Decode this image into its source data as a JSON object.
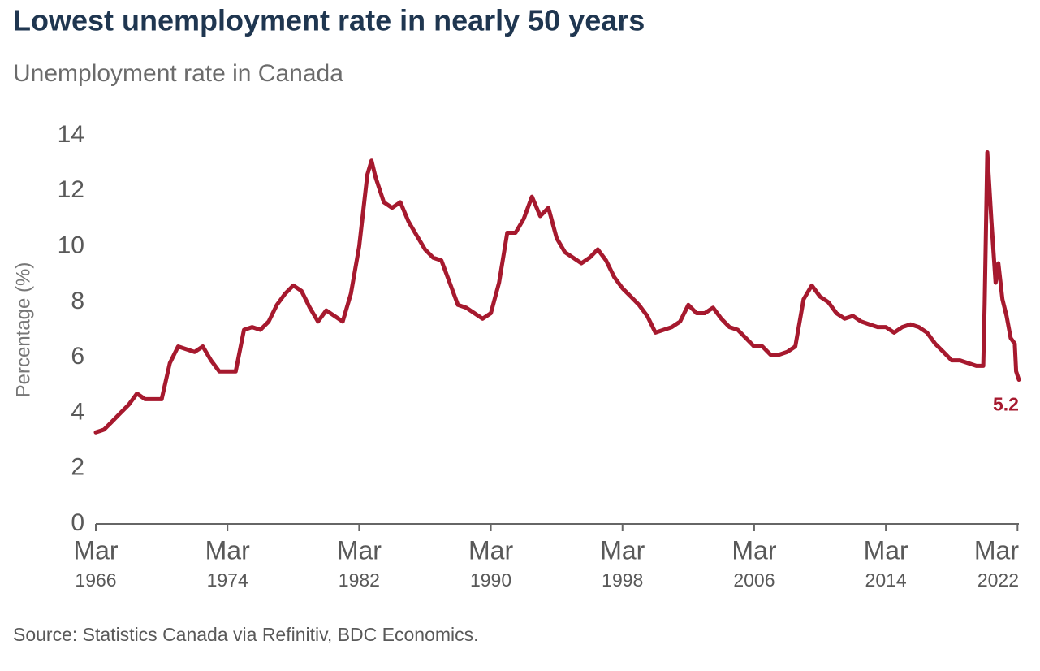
{
  "chart_data": {
    "type": "line",
    "title": "Lowest unemployment rate in nearly 50 years",
    "subtitle": "Unemployment rate in Canada",
    "y_label": "Percentage (%)",
    "source": "Source: Statistics Canada via Refinitiv, BDC Economics.",
    "color": "#a6192e",
    "ylim": [
      0,
      14
    ],
    "yticks": [
      0,
      2,
      4,
      6,
      8,
      10,
      12,
      14
    ],
    "xlim": [
      "1966-03",
      "2022-04"
    ],
    "xticks": [
      {
        "value": "1966-03",
        "label": [
          "Mar",
          "1966"
        ]
      },
      {
        "value": "1974-03",
        "label": [
          "Mar",
          "1974"
        ]
      },
      {
        "value": "1982-03",
        "label": [
          "Mar",
          "1982"
        ]
      },
      {
        "value": "1990-03",
        "label": [
          "Mar",
          "1990"
        ]
      },
      {
        "value": "1998-03",
        "label": [
          "Mar",
          "1998"
        ]
      },
      {
        "value": "2006-03",
        "label": [
          "Mar",
          "2006"
        ]
      },
      {
        "value": "2014-03",
        "label": [
          "Mar",
          "2014"
        ]
      },
      {
        "value": "2022-03",
        "label": [
          "Mar",
          "2022"
        ]
      }
    ],
    "x": [
      "1966-03",
      "1966-09",
      "1967-03",
      "1967-09",
      "1968-03",
      "1968-09",
      "1969-03",
      "1969-09",
      "1970-03",
      "1970-09",
      "1971-03",
      "1971-09",
      "1972-03",
      "1972-09",
      "1973-03",
      "1973-09",
      "1974-03",
      "1974-09",
      "1975-03",
      "1975-09",
      "1976-03",
      "1976-09",
      "1977-03",
      "1977-09",
      "1978-03",
      "1978-09",
      "1979-03",
      "1979-09",
      "1980-03",
      "1980-09",
      "1981-03",
      "1981-09",
      "1982-03",
      "1982-09",
      "1982-12",
      "1983-03",
      "1983-09",
      "1984-03",
      "1984-09",
      "1985-03",
      "1985-09",
      "1986-03",
      "1986-09",
      "1987-03",
      "1987-09",
      "1988-03",
      "1988-09",
      "1989-03",
      "1989-09",
      "1990-03",
      "1990-09",
      "1991-03",
      "1991-09",
      "1992-03",
      "1992-09",
      "1993-03",
      "1993-09",
      "1994-03",
      "1994-09",
      "1995-03",
      "1995-09",
      "1996-03",
      "1996-09",
      "1997-03",
      "1997-09",
      "1998-03",
      "1998-09",
      "1999-03",
      "1999-09",
      "2000-03",
      "2000-09",
      "2001-03",
      "2001-09",
      "2002-03",
      "2002-09",
      "2003-03",
      "2003-09",
      "2004-03",
      "2004-09",
      "2005-03",
      "2005-09",
      "2006-03",
      "2006-09",
      "2007-03",
      "2007-09",
      "2008-03",
      "2008-09",
      "2009-03",
      "2009-09",
      "2010-03",
      "2010-09",
      "2011-03",
      "2011-09",
      "2012-03",
      "2012-09",
      "2013-03",
      "2013-09",
      "2014-03",
      "2014-09",
      "2015-03",
      "2015-09",
      "2016-03",
      "2016-09",
      "2017-03",
      "2017-09",
      "2018-03",
      "2018-09",
      "2019-03",
      "2019-09",
      "2020-02",
      "2020-03",
      "2020-05",
      "2020-08",
      "2020-11",
      "2021-01",
      "2021-04",
      "2021-07",
      "2021-10",
      "2022-01",
      "2022-02",
      "2022-04"
    ],
    "values": [
      3.3,
      3.4,
      3.7,
      4.0,
      4.3,
      4.7,
      4.5,
      4.5,
      4.5,
      5.8,
      6.4,
      6.3,
      6.2,
      6.4,
      5.9,
      5.5,
      5.5,
      5.5,
      7.0,
      7.1,
      7.0,
      7.3,
      7.9,
      8.3,
      8.6,
      8.4,
      7.8,
      7.3,
      7.7,
      7.5,
      7.3,
      8.3,
      10.0,
      12.6,
      13.1,
      12.5,
      11.6,
      11.4,
      11.6,
      10.9,
      10.4,
      9.9,
      9.6,
      9.5,
      8.7,
      7.9,
      7.8,
      7.6,
      7.4,
      7.6,
      8.7,
      10.5,
      10.5,
      11.0,
      11.8,
      11.1,
      11.4,
      10.3,
      9.8,
      9.6,
      9.4,
      9.6,
      9.9,
      9.5,
      8.9,
      8.5,
      8.2,
      7.9,
      7.5,
      6.9,
      7.0,
      7.1,
      7.3,
      7.9,
      7.6,
      7.6,
      7.8,
      7.4,
      7.1,
      7.0,
      6.7,
      6.4,
      6.4,
      6.1,
      6.1,
      6.2,
      6.4,
      8.1,
      8.6,
      8.2,
      8.0,
      7.6,
      7.4,
      7.5,
      7.3,
      7.2,
      7.1,
      7.1,
      6.9,
      7.1,
      7.2,
      7.1,
      6.9,
      6.5,
      6.2,
      5.9,
      5.9,
      5.8,
      5.7,
      5.7,
      7.9,
      13.4,
      10.9,
      8.7,
      9.4,
      8.1,
      7.5,
      6.7,
      6.5,
      5.5,
      5.2
    ]
  }
}
